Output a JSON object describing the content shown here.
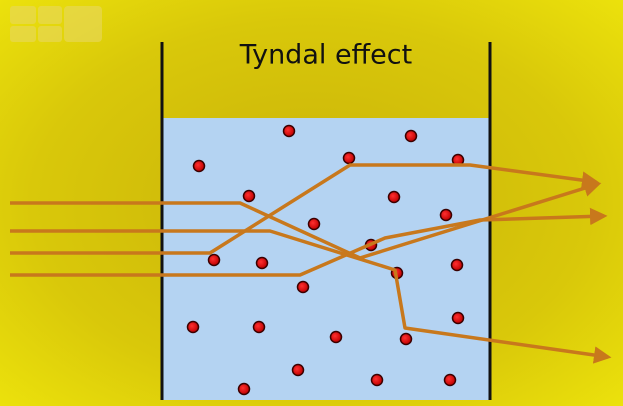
{
  "header": {
    "title": "Tyndal effect"
  }
}
